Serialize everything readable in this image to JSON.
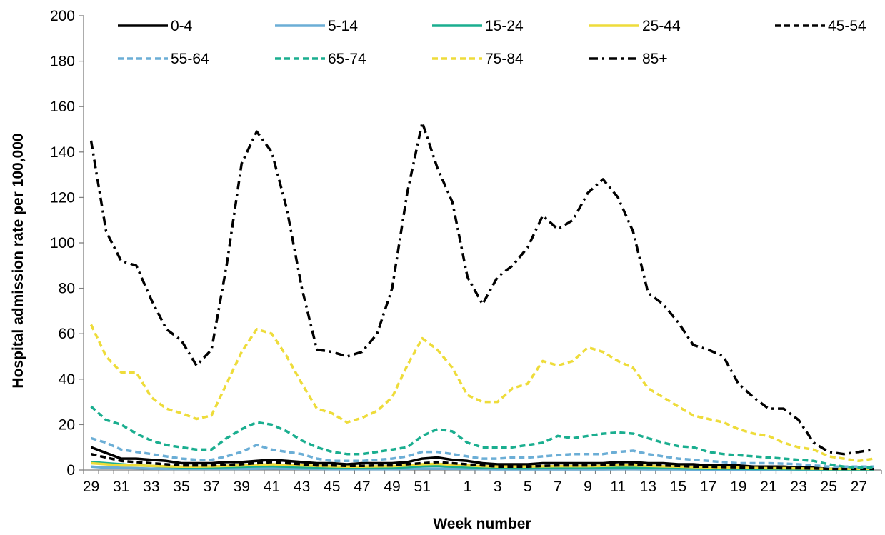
{
  "chart_data": {
    "type": "line",
    "xlabel": "Week number",
    "ylabel": "Hospital admission rate per 100,000",
    "ylim": [
      0,
      200
    ],
    "yticks": [
      0,
      20,
      40,
      60,
      80,
      100,
      120,
      140,
      160,
      180,
      200
    ],
    "x": [
      29,
      30,
      31,
      32,
      33,
      34,
      35,
      36,
      37,
      38,
      39,
      40,
      41,
      42,
      43,
      44,
      45,
      46,
      47,
      48,
      49,
      50,
      51,
      52,
      53,
      1,
      2,
      3,
      4,
      5,
      6,
      7,
      8,
      9,
      10,
      11,
      12,
      13,
      14,
      15,
      16,
      17,
      18,
      19,
      20,
      21,
      22,
      23,
      24,
      25,
      26,
      27,
      28
    ],
    "x_tick_labels": [
      "29",
      "31",
      "33",
      "35",
      "37",
      "39",
      "41",
      "43",
      "45",
      "47",
      "49",
      "51",
      "1",
      "3",
      "5",
      "7",
      "9",
      "11",
      "13",
      "15",
      "17",
      "19",
      "21",
      "23",
      "25",
      "27"
    ],
    "legend_position": "top",
    "series": [
      {
        "name": "0-4",
        "color": "#000000",
        "dash": "solid",
        "values": [
          10,
          7.5,
          5,
          5,
          4.5,
          4,
          3,
          3,
          3,
          3.5,
          3.5,
          4,
          4.5,
          4,
          3.5,
          3,
          3,
          2.5,
          3,
          3,
          3,
          3.5,
          5,
          5.5,
          4.5,
          4,
          3,
          2.5,
          2.5,
          2.5,
          3,
          3,
          3,
          3,
          3,
          3.5,
          3.5,
          3,
          3,
          2.5,
          2.5,
          2,
          2,
          2,
          1.5,
          1.5,
          1.5,
          1,
          1,
          0.5,
          0.5,
          0.5,
          0.5
        ]
      },
      {
        "name": "5-14",
        "color": "#6BAED6",
        "dash": "solid",
        "values": [
          1.5,
          1,
          1,
          0.8,
          0.6,
          0.5,
          0.5,
          0.5,
          0.5,
          0.5,
          0.5,
          0.6,
          0.7,
          0.6,
          0.5,
          0.5,
          0.4,
          0.4,
          0.4,
          0.4,
          0.4,
          0.5,
          0.6,
          0.6,
          0.5,
          0.5,
          0.4,
          0.3,
          0.3,
          0.3,
          0.3,
          0.3,
          0.3,
          0.3,
          0.3,
          0.4,
          0.4,
          0.3,
          0.3,
          0.3,
          0.2,
          0.2,
          0.2,
          0.2,
          0.2,
          0.2,
          0.2,
          0.2,
          0.1,
          0.1,
          0.1,
          0.1,
          0.1
        ]
      },
      {
        "name": "15-24",
        "color": "#1AAE8F",
        "dash": "solid",
        "values": [
          3.5,
          3,
          2.5,
          2,
          1.8,
          1.5,
          1.2,
          1.2,
          1.2,
          1.3,
          1.4,
          1.6,
          1.7,
          1.5,
          1.3,
          1.2,
          1,
          1,
          1,
          1,
          1,
          1.3,
          1.7,
          1.8,
          1.5,
          1.3,
          1,
          0.9,
          0.8,
          0.8,
          0.9,
          1,
          1,
          1,
          1,
          1.2,
          1.2,
          1,
          1,
          0.8,
          0.7,
          0.6,
          0.6,
          0.6,
          0.5,
          0.5,
          0.5,
          0.4,
          0.4,
          0.3,
          0.3,
          0.3,
          0.3
        ]
      },
      {
        "name": "25-44",
        "color": "#EEDC3A",
        "dash": "solid",
        "values": [
          3,
          2.5,
          2,
          2,
          1.8,
          1.6,
          1.5,
          1.5,
          1.6,
          1.8,
          2,
          2.3,
          2.5,
          2.2,
          2,
          1.8,
          1.6,
          1.5,
          1.5,
          1.6,
          1.7,
          2,
          2.5,
          2.7,
          2.3,
          2,
          1.7,
          1.5,
          1.5,
          1.5,
          1.6,
          1.7,
          1.7,
          1.7,
          1.8,
          2,
          2,
          1.8,
          1.6,
          1.5,
          1.3,
          1.2,
          1.1,
          1,
          0.9,
          0.8,
          0.8,
          0.7,
          0.6,
          0.5,
          0.5,
          0.5,
          0.5
        ]
      },
      {
        "name": "45-54",
        "color": "#000000",
        "dash": "dash",
        "values": [
          7,
          5.5,
          4,
          3.5,
          3,
          2.5,
          2,
          2,
          2,
          2.2,
          2.5,
          3,
          3.5,
          3,
          2.5,
          2,
          2,
          1.8,
          1.8,
          2,
          2,
          2.5,
          3,
          3.5,
          3,
          2.5,
          2,
          1.5,
          1.5,
          1.5,
          1.8,
          2,
          2,
          2,
          2.2,
          2.5,
          2.5,
          2.2,
          2,
          1.8,
          1.5,
          1.5,
          1.3,
          1.2,
          1,
          1,
          0.8,
          0.8,
          0.7,
          0.5,
          0.5,
          0.5,
          0.5
        ]
      },
      {
        "name": "55-64",
        "color": "#6BAED6",
        "dash": "dash",
        "values": [
          14,
          12,
          9,
          8,
          7,
          6,
          5,
          4.5,
          4.5,
          6,
          8,
          11,
          9,
          8,
          7,
          5,
          4,
          4,
          4,
          4.5,
          5,
          6,
          8,
          8,
          7,
          6,
          5,
          5,
          5.5,
          5.5,
          6,
          6.5,
          7,
          7,
          7,
          8,
          8.5,
          7,
          6,
          5,
          4.5,
          4,
          3.5,
          3,
          3,
          3,
          2.8,
          2.5,
          2,
          1.5,
          1.5,
          1.5,
          1.5
        ]
      },
      {
        "name": "65-74",
        "color": "#1AAE8F",
        "dash": "dash",
        "values": [
          28,
          22,
          20,
          16,
          13,
          11,
          10,
          9,
          9,
          14,
          18,
          21,
          20,
          17,
          13,
          10,
          8,
          7,
          7,
          8,
          9,
          10,
          15,
          18,
          17,
          12,
          10,
          10,
          10,
          11,
          12,
          15,
          14,
          15,
          16,
          16.5,
          16,
          14,
          12,
          10.5,
          10,
          8,
          7,
          6.5,
          6,
          5.5,
          5,
          4.5,
          4,
          2.5,
          1.5,
          1,
          1
        ]
      },
      {
        "name": "75-84",
        "color": "#EEDC3A",
        "dash": "dash",
        "values": [
          64,
          50,
          43,
          43,
          32,
          27,
          25,
          22.5,
          24,
          38,
          52,
          62,
          60,
          50,
          38,
          27,
          25,
          21,
          23,
          26,
          32,
          46,
          58,
          53,
          45,
          33,
          30,
          30,
          36,
          38,
          48,
          46,
          48,
          54,
          52,
          48,
          45,
          36,
          32,
          28,
          24,
          22.5,
          21,
          18,
          16,
          15,
          12,
          10,
          9,
          6,
          5,
          4,
          5
        ]
      },
      {
        "name": "85+",
        "color": "#000000",
        "dash": "dashdot",
        "values": [
          145,
          105,
          92,
          90,
          75,
          62,
          57,
          46,
          53,
          90,
          135,
          149,
          140,
          115,
          80,
          53,
          52,
          50,
          52,
          60,
          80,
          122,
          153,
          133,
          118,
          85,
          73,
          85,
          90,
          98,
          112,
          106,
          110,
          122,
          128,
          120,
          105,
          78,
          73,
          65,
          55,
          53,
          50,
          38,
          32,
          27,
          27,
          22,
          12,
          8,
          7,
          8,
          9
        ]
      }
    ]
  }
}
